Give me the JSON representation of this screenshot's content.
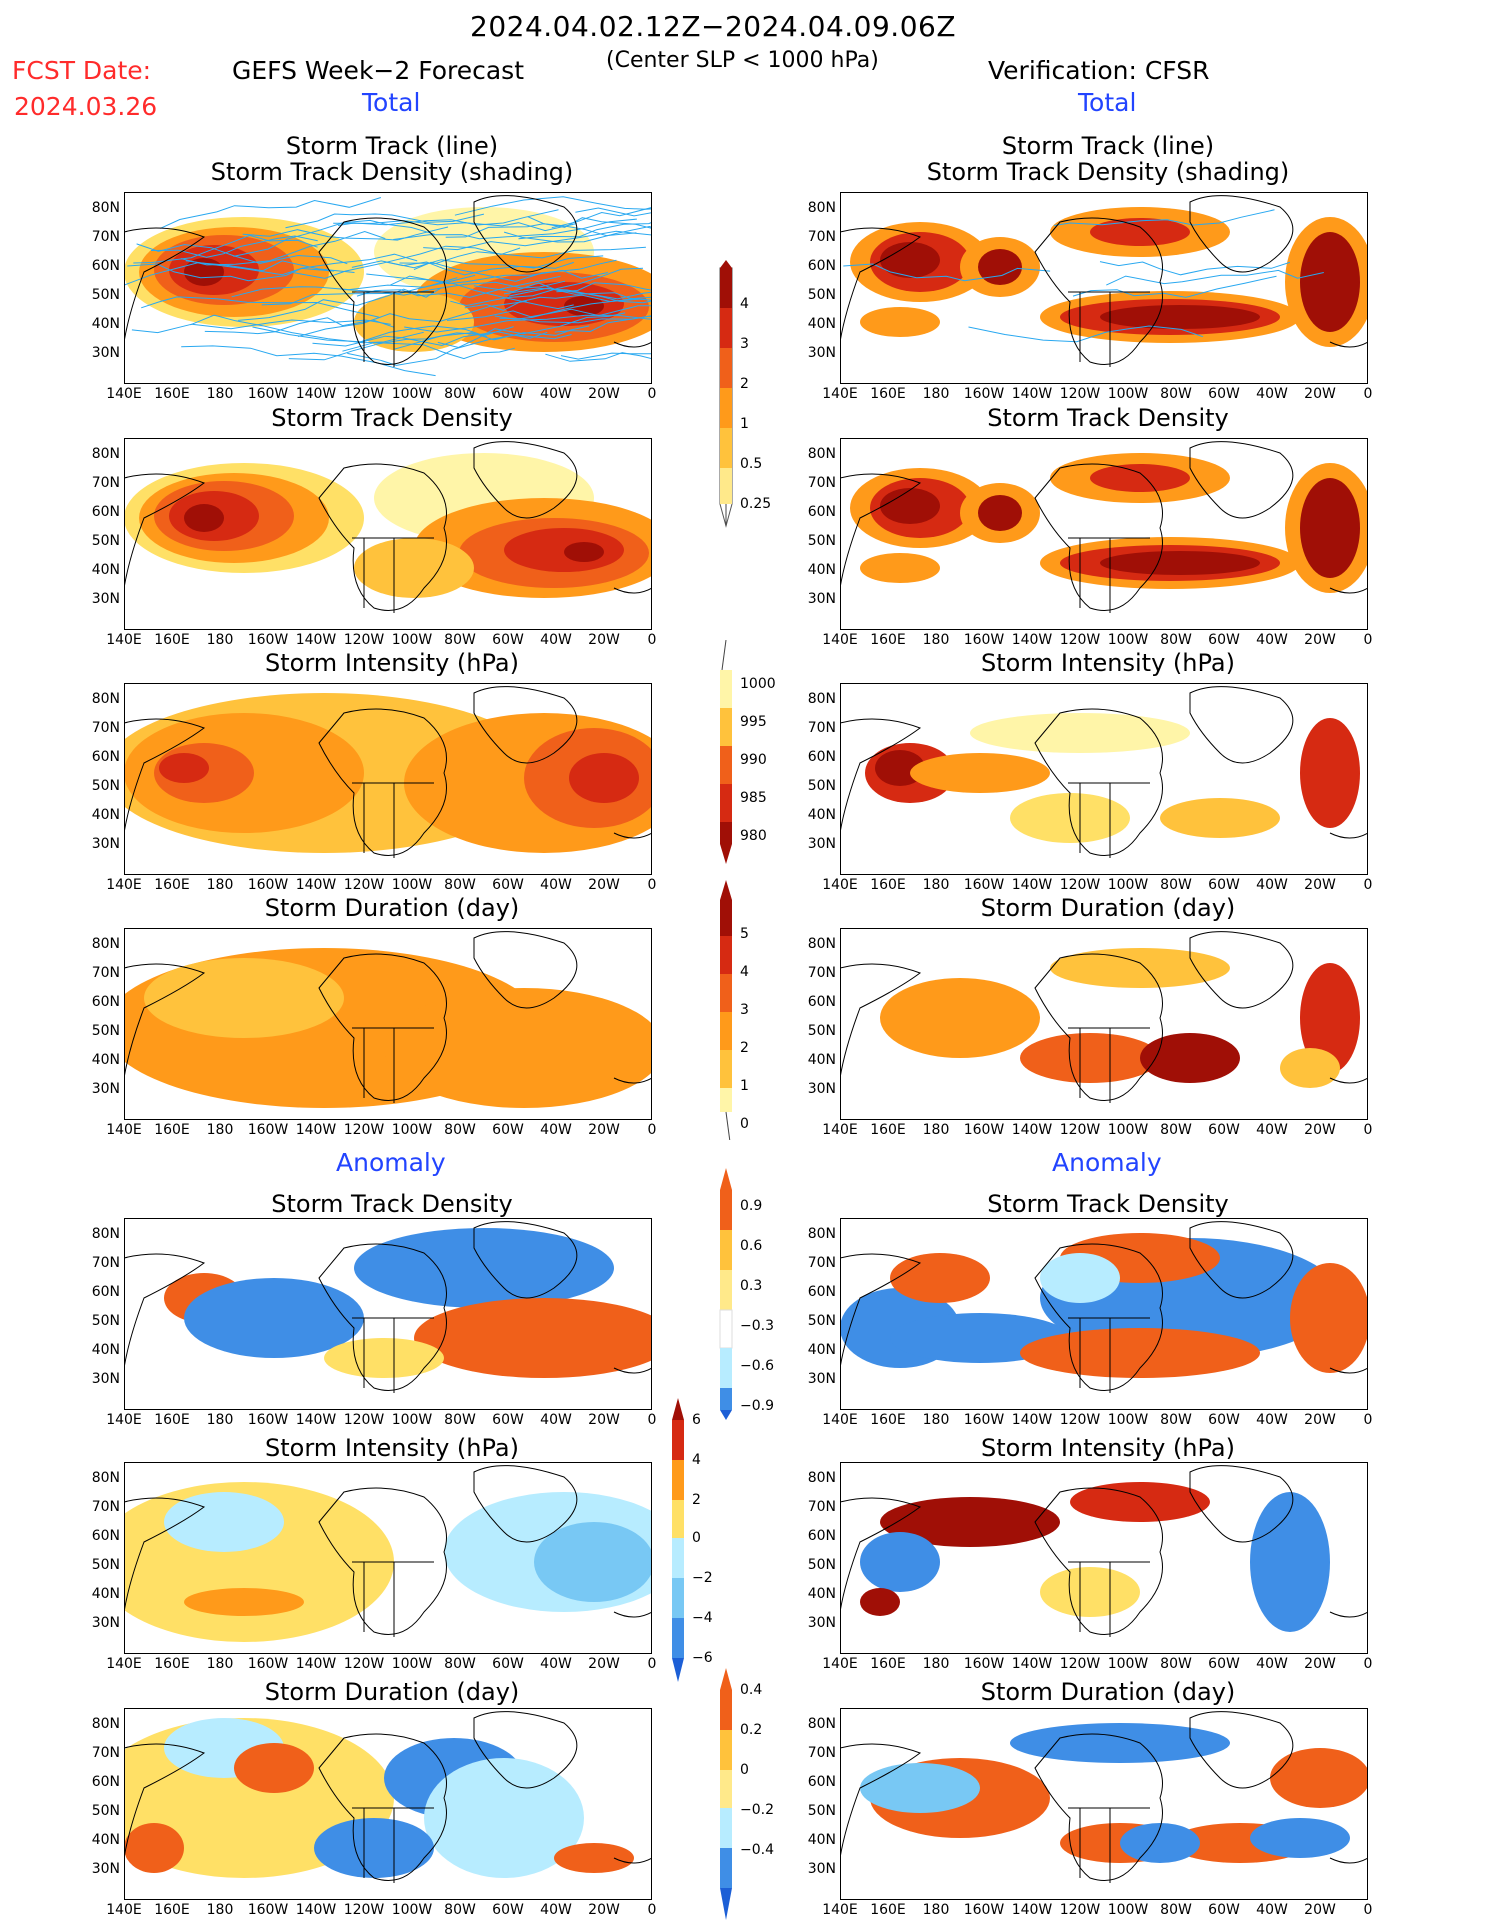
{
  "header": {
    "date_range": "2024.04.02.12Z−2024.04.09.06Z",
    "fcst_label": "FCST Date:",
    "fcst_date": "2024.03.26",
    "forecast_title": "GEFS Week−2 Forecast",
    "slp_note": "(Center SLP < 1000 hPa)",
    "verification_title": "Verification: CFSR"
  },
  "sections": {
    "total": "Total",
    "anomaly": "Anomaly"
  },
  "panel_titles": {
    "track_line": "Storm Track (line)",
    "track_density_shading": "Storm Track Density (shading)",
    "track_density": "Storm Track Density",
    "intensity": "Storm Intensity (hPa)",
    "duration": "Storm Duration (day)"
  },
  "axes": {
    "lat_labels": [
      "80N",
      "70N",
      "60N",
      "50N",
      "40N",
      "30N"
    ],
    "lon_labels": [
      "140E",
      "160E",
      "180",
      "160W",
      "140W",
      "120W",
      "100W",
      "80W",
      "60W",
      "40W",
      "20W",
      "0"
    ]
  },
  "colorbars": {
    "density_total": [
      "4",
      "3",
      "2",
      "1",
      "0.5",
      "0.25"
    ],
    "intensity_total": [
      "1000",
      "995",
      "990",
      "985",
      "980"
    ],
    "duration_total": [
      "5",
      "4",
      "3",
      "2",
      "1",
      "0"
    ],
    "density_anom": [
      "0.9",
      "0.6",
      "0.3",
      "−0.3",
      "−0.6",
      "−0.9"
    ],
    "intensity_anom": [
      "6",
      "4",
      "2",
      "0",
      "−2",
      "−4",
      "−6"
    ],
    "duration_anom": [
      "0.4",
      "0.2",
      "0",
      "−0.2",
      "−0.4"
    ]
  },
  "colors": {
    "yellow_light": "#fff5a8",
    "yellow": "#ffe066",
    "orange_light": "#ffc23c",
    "orange": "#ff9a1a",
    "orange_red": "#f0601a",
    "red": "#d62a12",
    "dark_red": "#a00f06",
    "blue_light": "#b7ecff",
    "blue_mid": "#78c8f4",
    "blue": "#3f8ee6",
    "blue_dark": "#1c5fd6",
    "track_blue": "#29a8f0",
    "fcst_red": "#ff2b2b",
    "section_blue": "#2244ff"
  }
}
